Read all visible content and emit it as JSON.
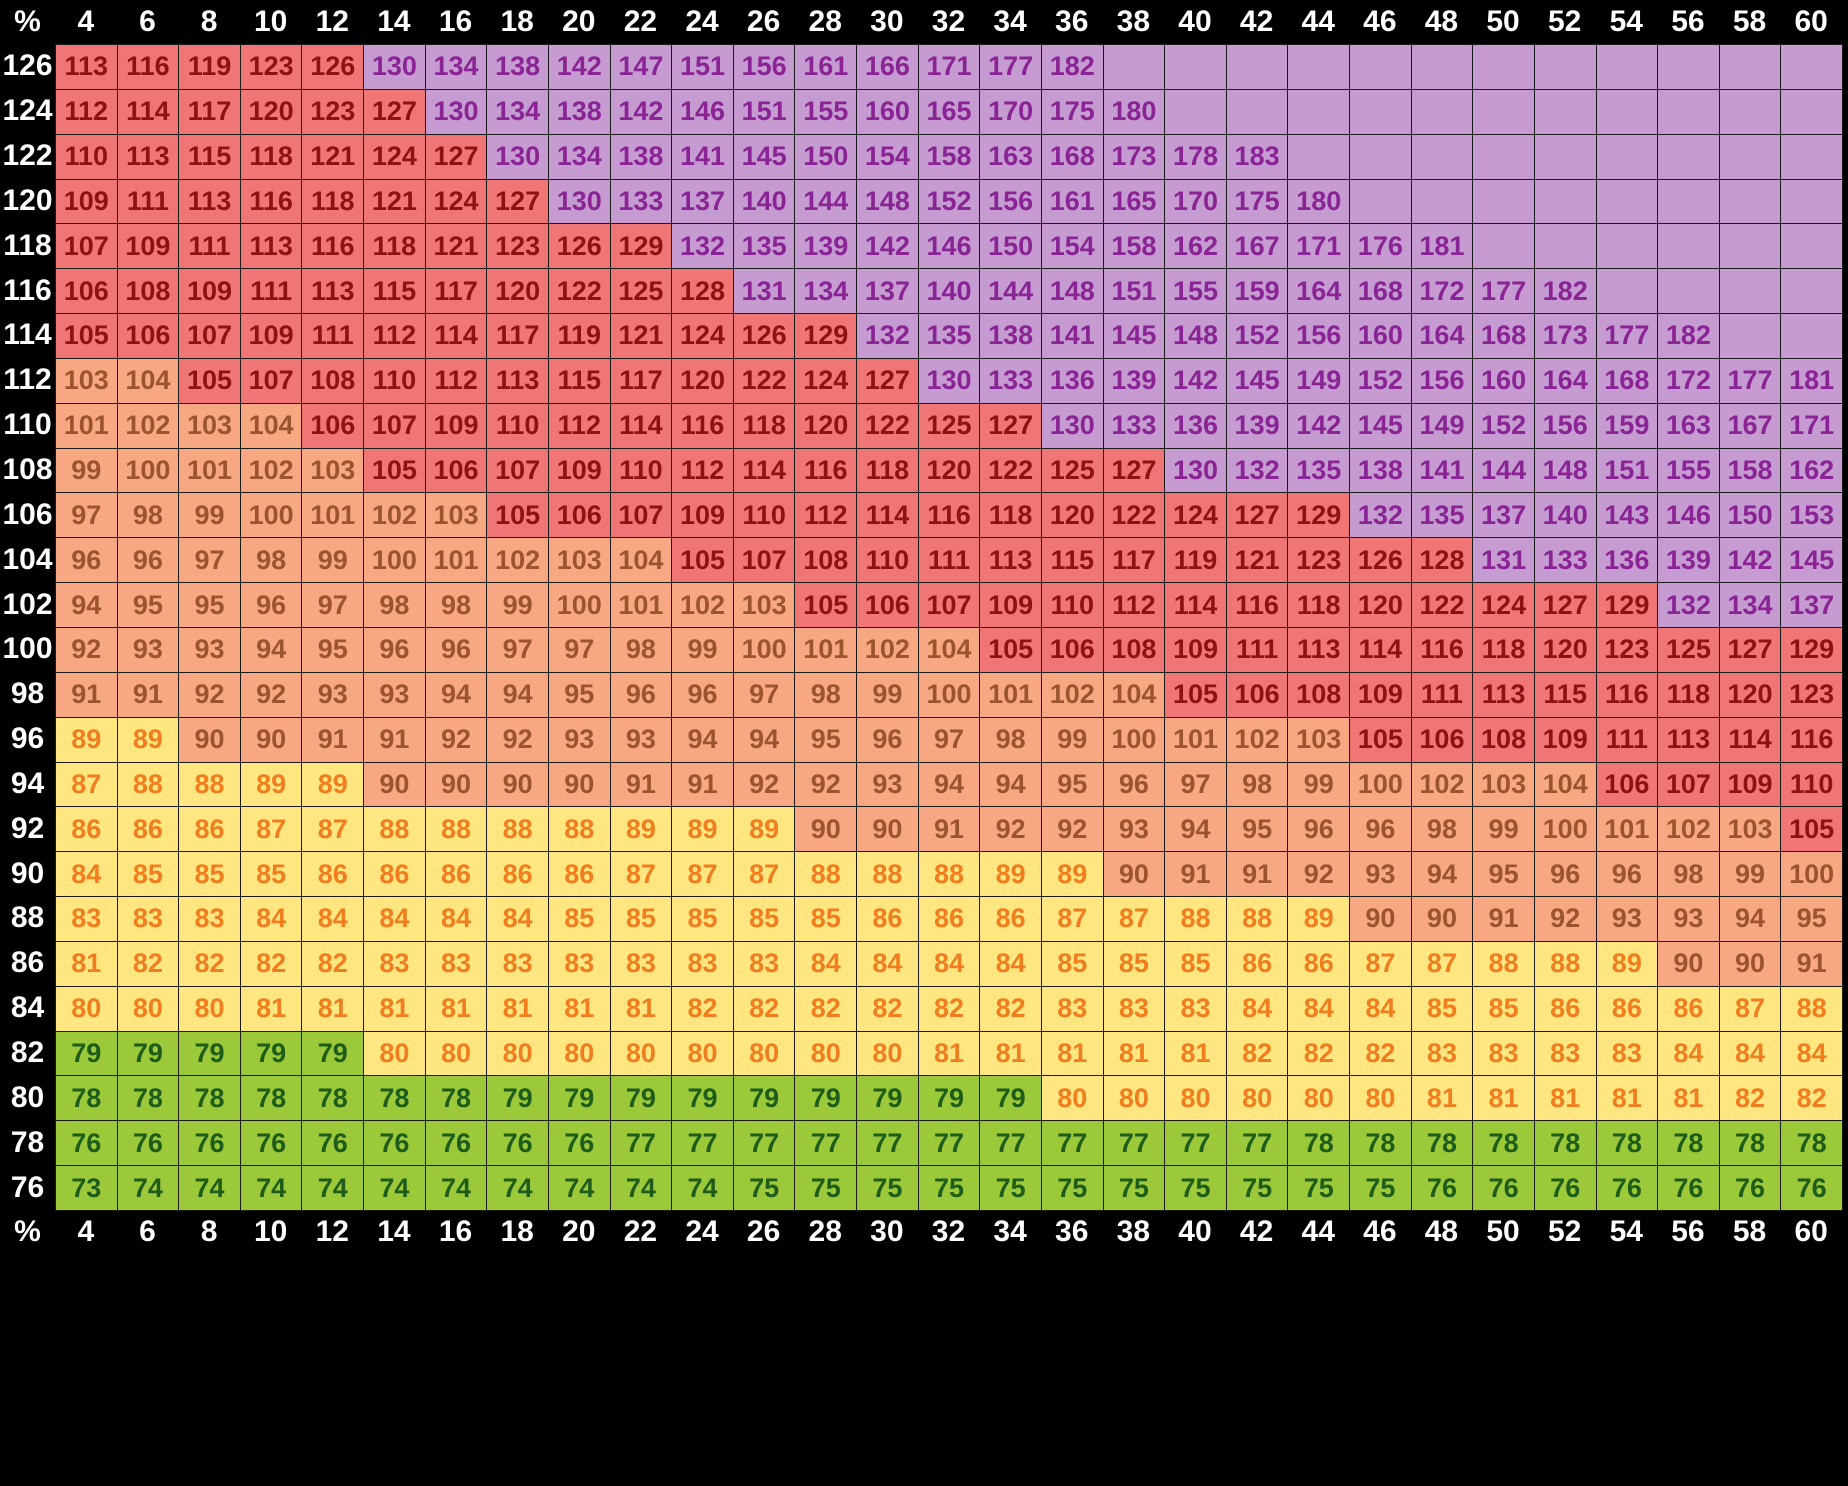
{
  "chart_data": {
    "type": "heatmap",
    "corner_label": "%",
    "columns": [
      "4",
      "6",
      "8",
      "10",
      "12",
      "14",
      "16",
      "18",
      "20",
      "22",
      "24",
      "26",
      "28",
      "30",
      "32",
      "34",
      "36",
      "38",
      "40",
      "42",
      "44",
      "46",
      "48",
      "50",
      "52",
      "54",
      "56",
      "58",
      "60"
    ],
    "rows": [
      "126",
      "124",
      "122",
      "120",
      "118",
      "116",
      "114",
      "112",
      "110",
      "108",
      "106",
      "104",
      "102",
      "100",
      "98",
      "96",
      "94",
      "92",
      "90",
      "88",
      "86",
      "84",
      "82",
      "80",
      "78",
      "76"
    ],
    "values": [
      [
        113,
        116,
        119,
        123,
        126,
        130,
        134,
        138,
        142,
        147,
        151,
        156,
        161,
        166,
        171,
        177,
        182,
        null,
        null,
        null,
        null,
        null,
        null,
        null,
        null,
        null,
        null,
        null,
        null
      ],
      [
        112,
        114,
        117,
        120,
        123,
        127,
        130,
        134,
        138,
        142,
        146,
        151,
        155,
        160,
        165,
        170,
        175,
        180,
        null,
        null,
        null,
        null,
        null,
        null,
        null,
        null,
        null,
        null,
        null
      ],
      [
        110,
        113,
        115,
        118,
        121,
        124,
        127,
        130,
        134,
        138,
        141,
        145,
        150,
        154,
        158,
        163,
        168,
        173,
        178,
        183,
        null,
        null,
        null,
        null,
        null,
        null,
        null,
        null,
        null
      ],
      [
        109,
        111,
        113,
        116,
        118,
        121,
        124,
        127,
        130,
        133,
        137,
        140,
        144,
        148,
        152,
        156,
        161,
        165,
        170,
        175,
        180,
        null,
        null,
        null,
        null,
        null,
        null,
        null,
        null
      ],
      [
        107,
        109,
        111,
        113,
        116,
        118,
        121,
        123,
        126,
        129,
        132,
        135,
        139,
        142,
        146,
        150,
        154,
        158,
        162,
        167,
        171,
        176,
        181,
        null,
        null,
        null,
        null,
        null,
        null
      ],
      [
        106,
        108,
        109,
        111,
        113,
        115,
        117,
        120,
        122,
        125,
        128,
        131,
        134,
        137,
        140,
        144,
        148,
        151,
        155,
        159,
        164,
        168,
        172,
        177,
        182,
        null,
        null,
        null,
        null
      ],
      [
        105,
        106,
        107,
        109,
        111,
        112,
        114,
        117,
        119,
        121,
        124,
        126,
        129,
        132,
        135,
        138,
        141,
        145,
        148,
        152,
        156,
        160,
        164,
        168,
        173,
        177,
        182,
        null,
        null
      ],
      [
        103,
        104,
        105,
        107,
        108,
        110,
        112,
        113,
        115,
        117,
        120,
        122,
        124,
        127,
        130,
        133,
        136,
        139,
        142,
        145,
        149,
        152,
        156,
        160,
        164,
        168,
        172,
        177,
        181
      ],
      [
        101,
        102,
        103,
        104,
        106,
        107,
        109,
        110,
        112,
        114,
        116,
        118,
        120,
        122,
        125,
        127,
        130,
        133,
        136,
        139,
        142,
        145,
        149,
        152,
        156,
        159,
        163,
        167,
        171
      ],
      [
        99,
        100,
        101,
        102,
        103,
        105,
        106,
        107,
        109,
        110,
        112,
        114,
        116,
        118,
        120,
        122,
        125,
        127,
        130,
        132,
        135,
        138,
        141,
        144,
        148,
        151,
        155,
        158,
        162
      ],
      [
        97,
        98,
        99,
        100,
        101,
        102,
        103,
        105,
        106,
        107,
        109,
        110,
        112,
        114,
        116,
        118,
        120,
        122,
        124,
        127,
        129,
        132,
        135,
        137,
        140,
        143,
        146,
        150,
        153
      ],
      [
        96,
        96,
        97,
        98,
        99,
        100,
        101,
        102,
        103,
        104,
        105,
        107,
        108,
        110,
        111,
        113,
        115,
        117,
        119,
        121,
        123,
        126,
        128,
        131,
        133,
        136,
        139,
        142,
        145
      ],
      [
        94,
        95,
        95,
        96,
        97,
        98,
        98,
        99,
        100,
        101,
        102,
        103,
        105,
        106,
        107,
        109,
        110,
        112,
        114,
        116,
        118,
        120,
        122,
        124,
        127,
        129,
        132,
        134,
        137
      ],
      [
        92,
        93,
        93,
        94,
        95,
        96,
        96,
        97,
        97,
        98,
        99,
        100,
        101,
        102,
        104,
        105,
        106,
        108,
        109,
        111,
        113,
        114,
        116,
        118,
        120,
        123,
        125,
        127,
        129
      ],
      [
        91,
        91,
        92,
        92,
        93,
        93,
        94,
        94,
        95,
        96,
        96,
        97,
        98,
        99,
        100,
        101,
        102,
        104,
        105,
        106,
        108,
        109,
        111,
        113,
        115,
        116,
        118,
        120,
        123
      ],
      [
        89,
        89,
        90,
        90,
        91,
        91,
        92,
        92,
        93,
        93,
        94,
        94,
        95,
        96,
        97,
        98,
        99,
        100,
        101,
        102,
        103,
        105,
        106,
        108,
        109,
        111,
        113,
        114,
        116
      ],
      [
        87,
        88,
        88,
        89,
        89,
        90,
        90,
        90,
        90,
        91,
        91,
        92,
        92,
        93,
        94,
        94,
        95,
        96,
        97,
        98,
        99,
        100,
        102,
        103,
        104,
        106,
        107,
        109,
        110
      ],
      [
        86,
        86,
        86,
        87,
        87,
        88,
        88,
        88,
        88,
        89,
        89,
        89,
        90,
        90,
        91,
        92,
        92,
        93,
        94,
        95,
        96,
        96,
        98,
        99,
        100,
        101,
        102,
        103,
        105
      ],
      [
        84,
        85,
        85,
        85,
        86,
        86,
        86,
        86,
        86,
        87,
        87,
        87,
        88,
        88,
        88,
        89,
        89,
        90,
        91,
        91,
        92,
        93,
        94,
        95,
        96,
        96,
        98,
        99,
        100
      ],
      [
        83,
        83,
        83,
        84,
        84,
        84,
        84,
        84,
        85,
        85,
        85,
        85,
        85,
        86,
        86,
        86,
        87,
        87,
        88,
        88,
        89,
        90,
        90,
        91,
        92,
        93,
        93,
        94,
        95
      ],
      [
        81,
        82,
        82,
        82,
        82,
        83,
        83,
        83,
        83,
        83,
        83,
        83,
        84,
        84,
        84,
        84,
        85,
        85,
        85,
        86,
        86,
        87,
        87,
        88,
        88,
        89,
        90,
        90,
        91
      ],
      [
        80,
        80,
        80,
        81,
        81,
        81,
        81,
        81,
        81,
        81,
        82,
        82,
        82,
        82,
        82,
        82,
        83,
        83,
        83,
        84,
        84,
        84,
        85,
        85,
        86,
        86,
        86,
        87,
        88
      ],
      [
        79,
        79,
        79,
        79,
        79,
        80,
        80,
        80,
        80,
        80,
        80,
        80,
        80,
        80,
        81,
        81,
        81,
        81,
        81,
        82,
        82,
        82,
        83,
        83,
        83,
        83,
        84,
        84,
        84
      ],
      [
        78,
        78,
        78,
        78,
        78,
        78,
        78,
        79,
        79,
        79,
        79,
        79,
        79,
        79,
        79,
        79,
        80,
        80,
        80,
        80,
        80,
        80,
        81,
        81,
        81,
        81,
        81,
        82,
        82
      ],
      [
        76,
        76,
        76,
        76,
        76,
        76,
        76,
        76,
        76,
        77,
        77,
        77,
        77,
        77,
        77,
        77,
        77,
        77,
        77,
        77,
        78,
        78,
        78,
        78,
        78,
        78,
        78,
        78,
        78
      ],
      [
        73,
        74,
        74,
        74,
        74,
        74,
        74,
        74,
        74,
        74,
        74,
        75,
        75,
        75,
        75,
        75,
        75,
        75,
        75,
        75,
        75,
        75,
        76,
        76,
        76,
        76,
        76,
        76,
        76
      ]
    ],
    "color_bands": [
      {
        "below": 80,
        "fill": "#9cc93a",
        "text": "#1e5c1a"
      },
      {
        "below": 90,
        "fill": "#ffe680",
        "text": "#f07d1e"
      },
      {
        "below": 105,
        "fill": "#f7a882",
        "text": "#9c5430"
      },
      {
        "below": 130,
        "fill": "#f07575",
        "text": "#8f1212"
      },
      {
        "below": 1000,
        "fill": "#c59bd2",
        "text": "#8a2494"
      }
    ],
    "empty_cell_fill": "#c59bd2",
    "header_background": "#000000",
    "header_text_color": "#ffffff"
  }
}
